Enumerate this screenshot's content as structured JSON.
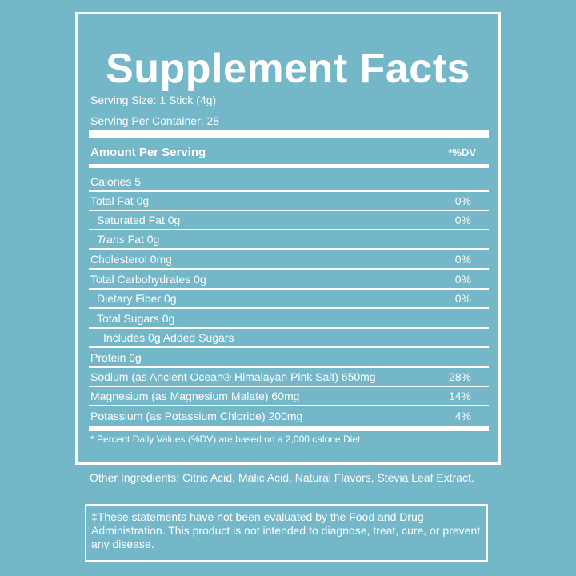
{
  "title": "Supplement Facts",
  "serving_size": "Serving Size: 1 Stick (4g)",
  "servings_per_container": "Serving Per Container: 28",
  "header": {
    "amount_label": "Amount Per Serving",
    "dv_label": "*%DV"
  },
  "nutrients": [
    {
      "name": "Calories 5",
      "dv": ""
    },
    {
      "name": "Total Fat 0g",
      "dv": "0%"
    },
    {
      "name": "Saturated Fat 0g",
      "dv": "0%"
    },
    {
      "name_italic": "Trans",
      "name_rest": " Fat 0g",
      "dv": ""
    },
    {
      "name": "Cholesterol 0mg",
      "dv": "0%"
    },
    {
      "name": "Total Carbohydrates 0g",
      "dv": "0%"
    },
    {
      "name": "Dietary Fiber 0g",
      "dv": "0%"
    },
    {
      "name": "Total Sugars 0g",
      "dv": ""
    },
    {
      "name": "Includes 0g Added Sugars",
      "dv": ""
    },
    {
      "name": "Protein 0g",
      "dv": ""
    },
    {
      "name": "Sodium (as Ancient Ocean® Himalayan Pink Salt) 650mg",
      "dv": "28%"
    },
    {
      "name": "Magnesium (as Magnesium Malate) 60mg",
      "dv": "14%"
    },
    {
      "name": "Potassium (as Potassium Chloride) 200mg",
      "dv": "4%"
    }
  ],
  "footnote": "* Percent Daily Values (%DV) are based on a 2,000 calorie Diet",
  "other_ingredients": "Other Ingredients: Citric Acid, Malic Acid, Natural Flavors, Stevia Leaf Extract.",
  "disclaimer": "‡These statements have not been evaluated by the Food and Drug Administration. This product is not intended to diagnose, treat, cure, or prevent any disease.",
  "colors": {
    "background": "#73b7c9",
    "foreground": "#ffffff"
  }
}
